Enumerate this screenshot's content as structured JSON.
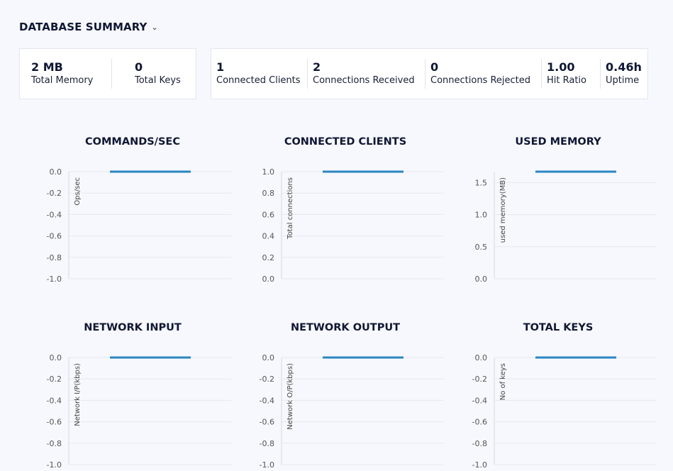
{
  "header": {
    "title": "DATABASE SUMMARY",
    "toggle_icon": "chevron-down-icon"
  },
  "summary_cards": [
    {
      "stats": [
        {
          "value": "2 MB",
          "label": "Total Memory"
        },
        {
          "value": "0",
          "label": "Total Keys"
        }
      ]
    },
    {
      "stats": [
        {
          "value": "1",
          "label": "Connected Clients"
        },
        {
          "value": "2",
          "label": "Connections Received"
        },
        {
          "value": "0",
          "label": "Connections Rejected"
        },
        {
          "value": "1.00",
          "label": "Hit Ratio"
        },
        {
          "value": "0.46h",
          "label": "Uptime"
        }
      ]
    }
  ],
  "colors": {
    "line": "#2a86c0",
    "grid": "#e6e8ee",
    "text": "#0f1733"
  },
  "chart_data": [
    {
      "type": "line",
      "title": "COMMANDS/SEC",
      "ylabel": "Ops/sec",
      "ylim": [
        -1,
        0
      ],
      "yticks": [
        "0.0",
        "-0.2",
        "-0.4",
        "-0.6",
        "-0.8",
        "-1.0"
      ],
      "grid": true,
      "values": [
        0,
        0
      ]
    },
    {
      "type": "line",
      "title": "CONNECTED CLIENTS",
      "ylabel": "Total connections",
      "ylim": [
        0,
        1
      ],
      "yticks": [
        "1.0",
        "0.8",
        "0.6",
        "0.4",
        "0.2",
        "0.0"
      ],
      "grid": true,
      "values": [
        1,
        1
      ]
    },
    {
      "type": "line",
      "title": "USED MEMORY",
      "ylabel": "used memory(MB)",
      "ylim": [
        0,
        1.67
      ],
      "yticks": [
        "1.5",
        "1.0",
        "0.5",
        "0.0"
      ],
      "ytick_values": [
        1.5,
        1.0,
        0.5,
        0.0
      ],
      "grid": true,
      "values": [
        1.67,
        1.67
      ]
    },
    {
      "type": "line",
      "title": "NETWORK INPUT",
      "ylabel": "Network I/P(kbps)",
      "ylim": [
        -1,
        0
      ],
      "yticks": [
        "0.0",
        "-0.2",
        "-0.4",
        "-0.6",
        "-0.8",
        "-1.0"
      ],
      "grid": true,
      "values": [
        0,
        0
      ]
    },
    {
      "type": "line",
      "title": "NETWORK OUTPUT",
      "ylabel": "Network O/P(kbps)",
      "ylim": [
        -1,
        0
      ],
      "yticks": [
        "0.0",
        "-0.2",
        "-0.4",
        "-0.6",
        "-0.8",
        "-1.0"
      ],
      "grid": true,
      "values": [
        0,
        0
      ]
    },
    {
      "type": "line",
      "title": "TOTAL KEYS",
      "ylabel": "No of keys",
      "ylim": [
        -1,
        0
      ],
      "yticks": [
        "0.0",
        "-0.2",
        "-0.4",
        "-0.6",
        "-0.8",
        "-1.0"
      ],
      "grid": true,
      "values": [
        0,
        0
      ]
    }
  ]
}
